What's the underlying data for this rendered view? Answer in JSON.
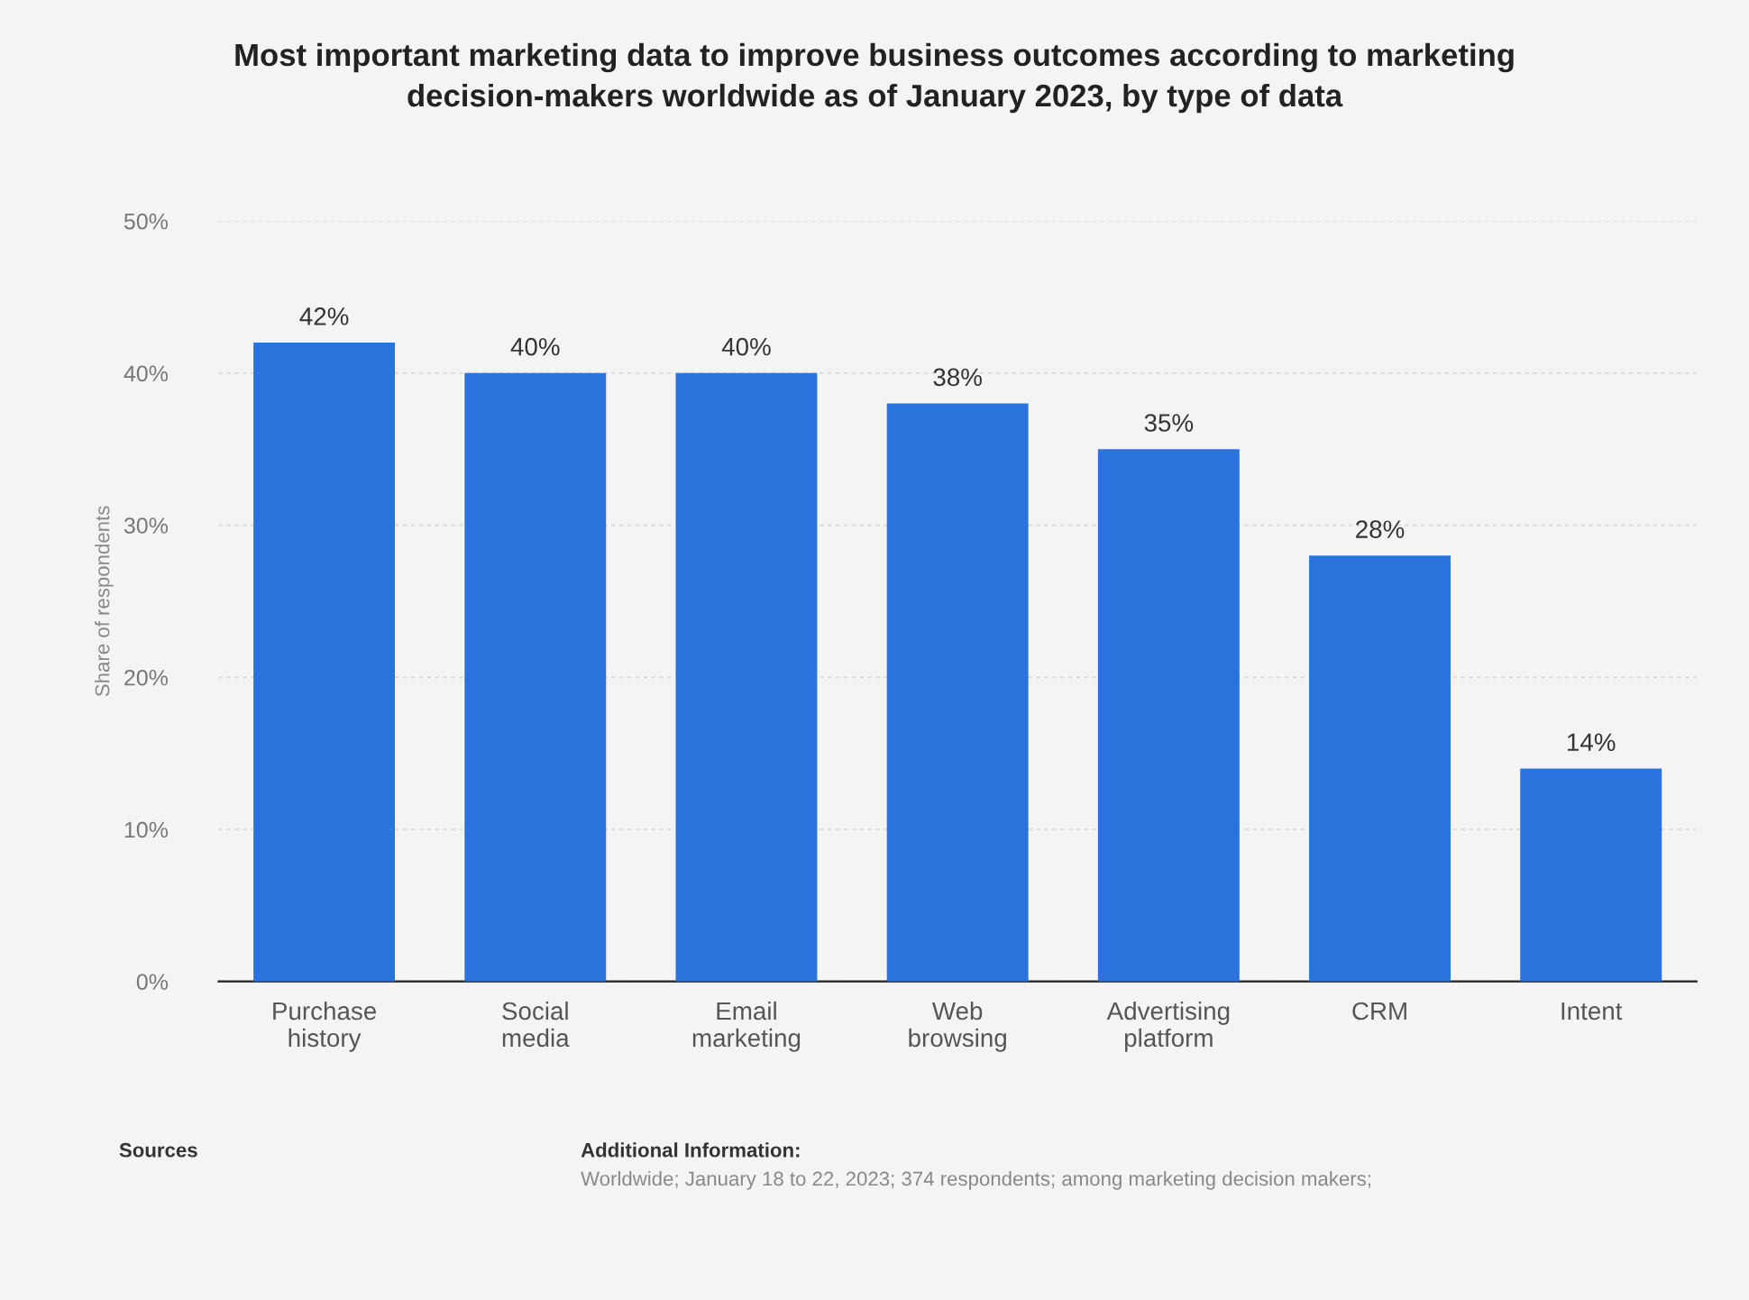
{
  "chart_data": {
    "type": "bar",
    "title": "Most important marketing data to improve business outcomes according to marketing\ndecision-makers worldwide as of January 2023, by type of data",
    "categories": [
      "Purchase\nhistory",
      "Social\nmedia",
      "Email\nmarketing",
      "Web\nbrowsing",
      "Advertising\nplatform",
      "CRM",
      "Intent"
    ],
    "values": [
      42,
      40,
      40,
      38,
      35,
      28,
      14
    ],
    "value_labels": [
      "42%",
      "40%",
      "40%",
      "38%",
      "35%",
      "28%",
      "14%"
    ],
    "color": "#2a72dc",
    "ylabel": "Share of respondents",
    "ylim": [
      0,
      50
    ],
    "yticks": [
      {
        "value": 0,
        "label": "0%"
      },
      {
        "value": 10,
        "label": "10%"
      },
      {
        "value": 20,
        "label": "20%"
      },
      {
        "value": 30,
        "label": "30%"
      },
      {
        "value": 40,
        "label": "40%"
      },
      {
        "value": 50,
        "label": "50%"
      }
    ],
    "grid": "y",
    "annotations": [
      "Sources",
      "Additional Information:",
      "Worldwide; January 18 to 22, 2023; 374 respondents; among marketing decision makers;"
    ]
  }
}
